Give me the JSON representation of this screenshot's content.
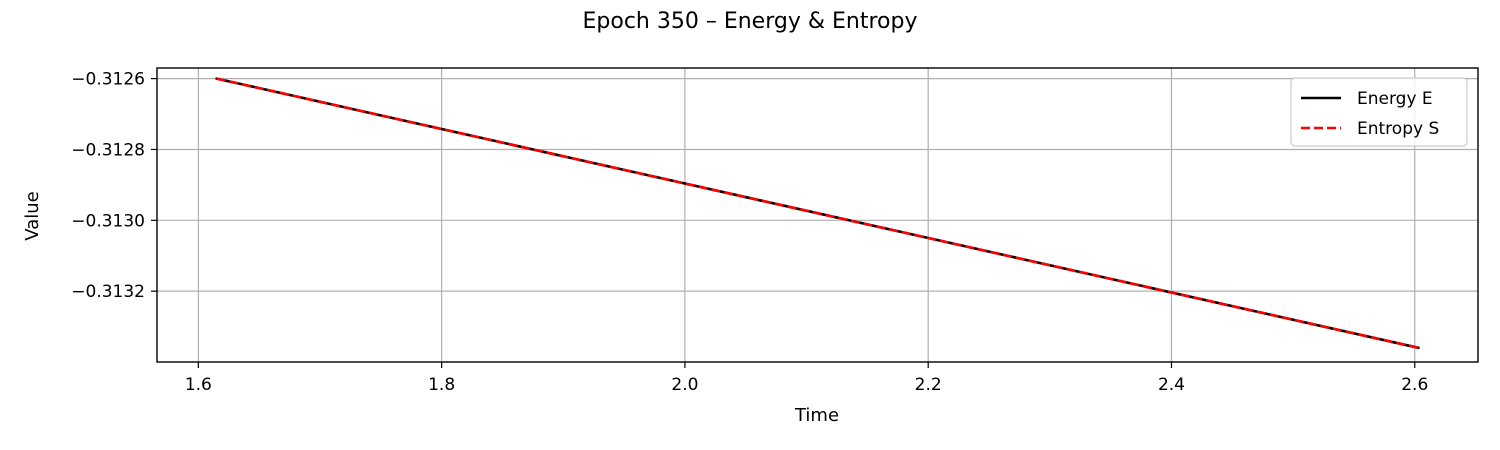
{
  "chart_data": {
    "type": "line",
    "title": "Epoch 350 – Energy & Entropy",
    "xlabel": "Time",
    "ylabel": "Value",
    "xlim": [
      1.566,
      2.652
    ],
    "ylim": [
      -0.3134,
      -0.31257
    ],
    "x_ticks": [
      1.6,
      1.8,
      2.0,
      2.2,
      2.4,
      2.6
    ],
    "x_tick_labels": [
      "1.6",
      "1.8",
      "2.0",
      "2.2",
      "2.4",
      "2.6"
    ],
    "y_ticks": [
      -0.3126,
      -0.3128,
      -0.313,
      -0.3132
    ],
    "y_tick_labels": [
      "−0.3126",
      "−0.3128",
      "−0.3130",
      "−0.3132"
    ],
    "grid": true,
    "legend_position": "top-right",
    "series": [
      {
        "name": "Energy E",
        "color": "#000000",
        "line_style": "solid",
        "x": [
          1.615,
          2.603
        ],
        "y": [
          -0.3126,
          -0.31336
        ]
      },
      {
        "name": "Entropy S",
        "color": "#ff0000",
        "line_style": "dashed",
        "x": [
          1.615,
          2.603
        ],
        "y": [
          -0.3126,
          -0.31336
        ]
      }
    ]
  }
}
